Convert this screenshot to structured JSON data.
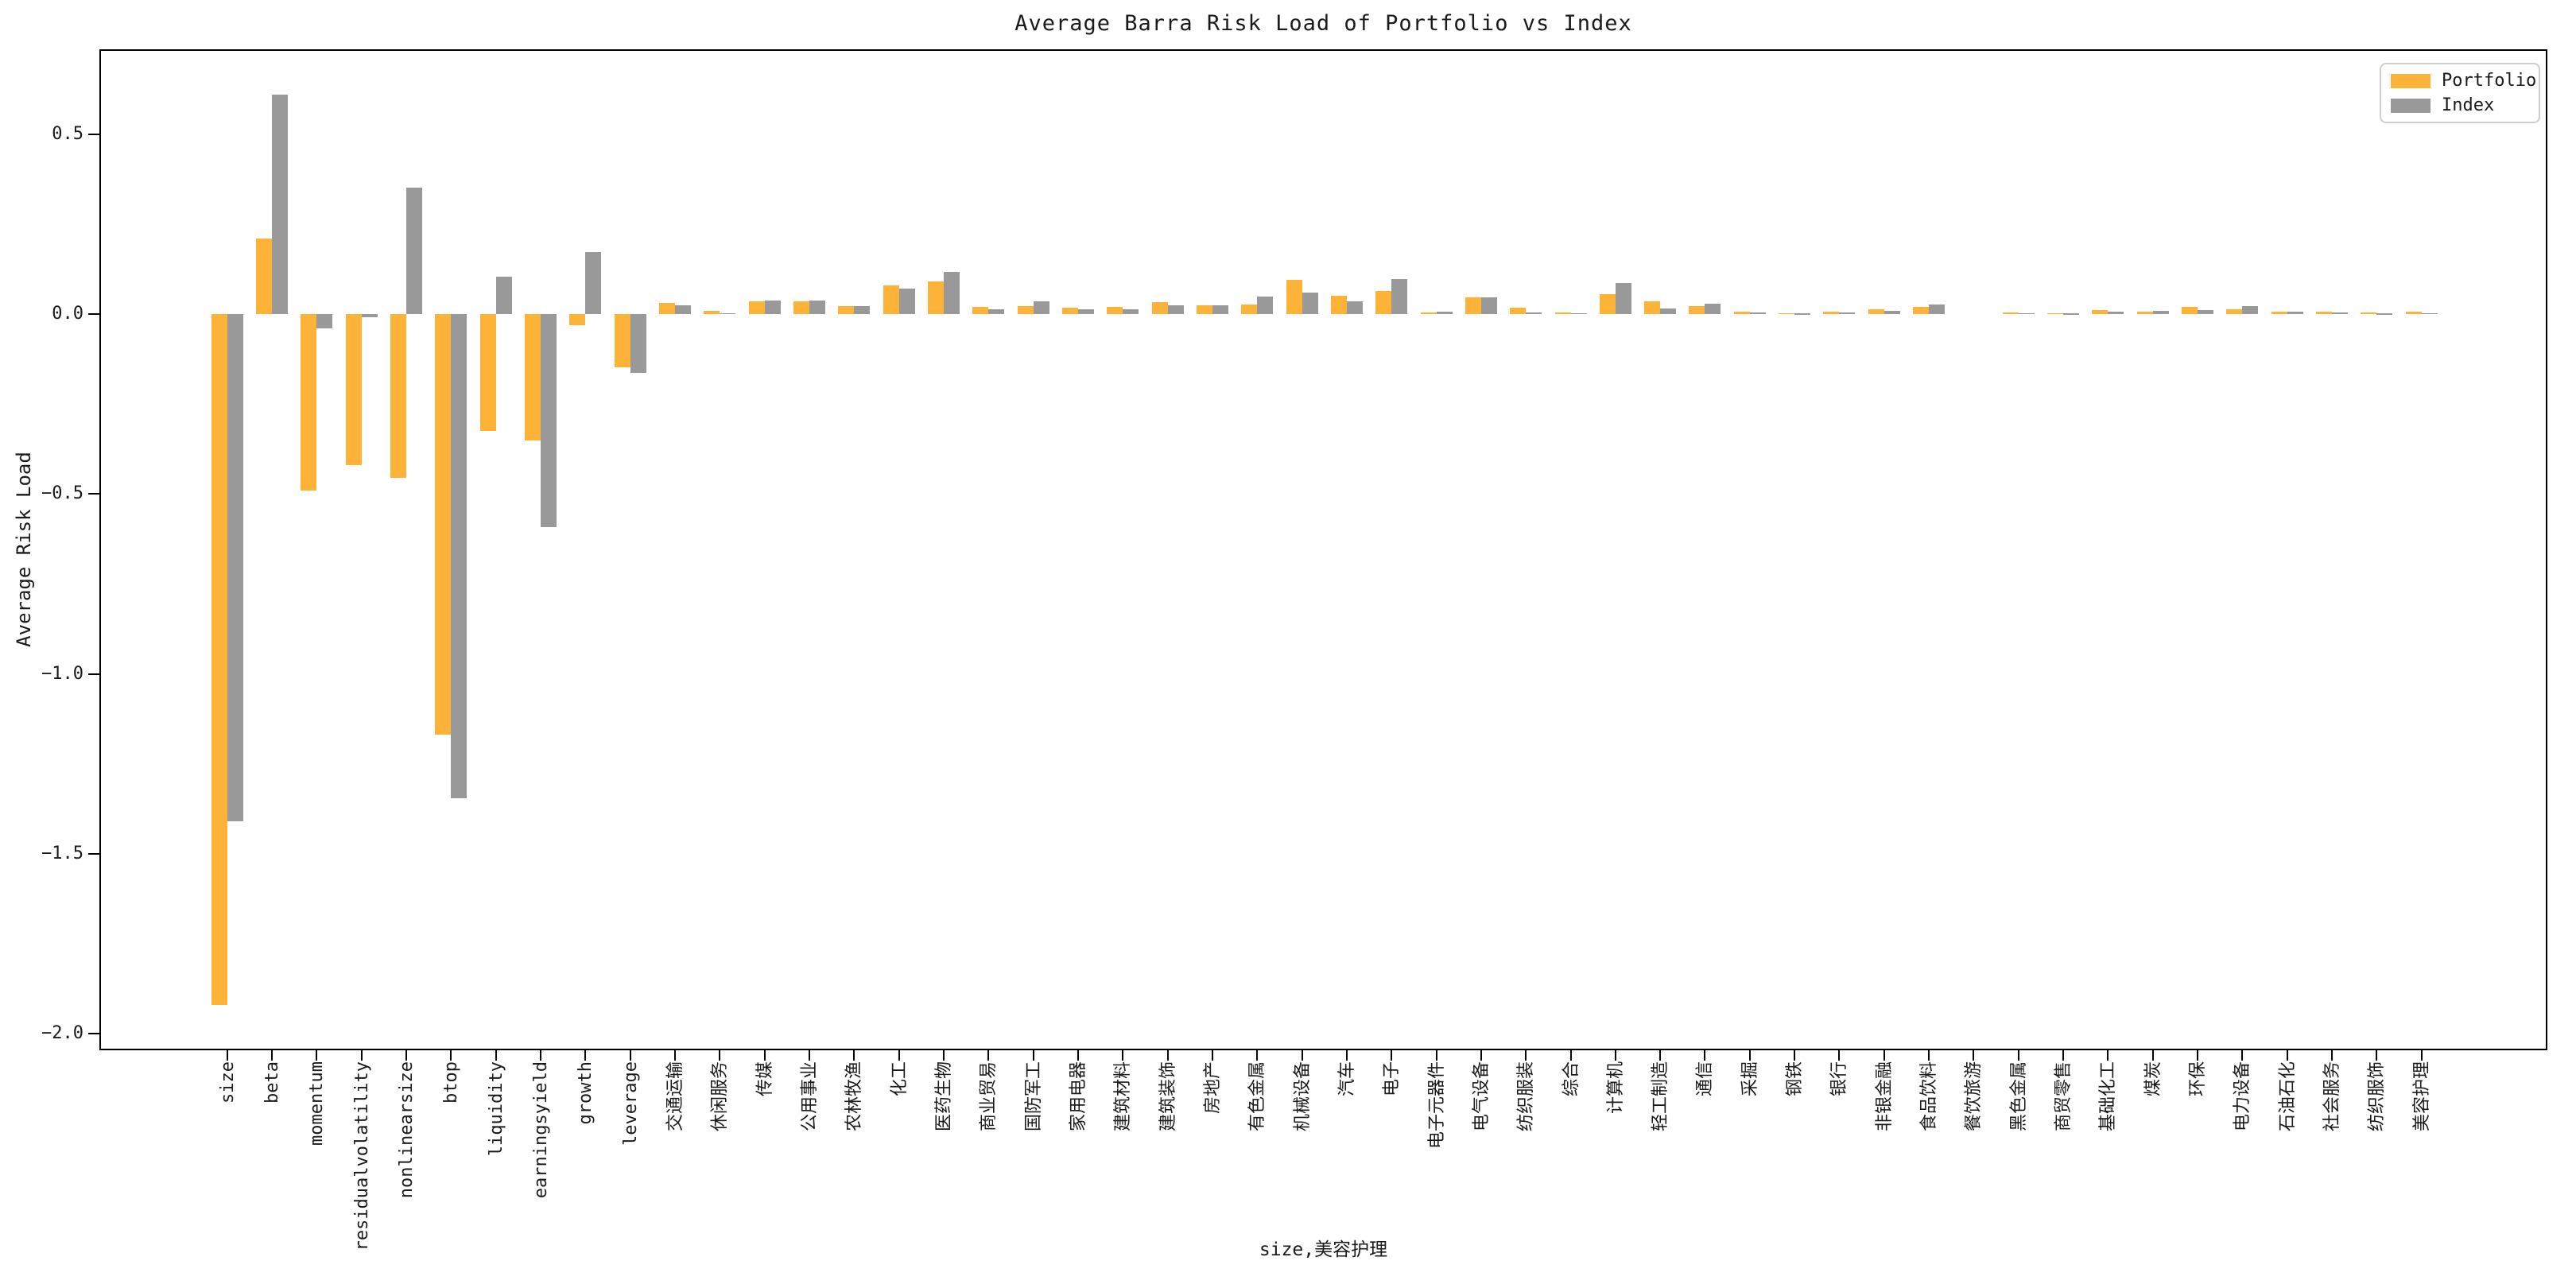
{
  "title": "Average Barra Risk Load of Portfolio vs Index",
  "ylabel": "Average Risk Load",
  "xlabel": "size,美容护理",
  "legend": {
    "entries": [
      {
        "label": "Portfolio",
        "color": "#FDB338"
      },
      {
        "label": "Index",
        "color": "#999999"
      }
    ]
  },
  "chart_data": {
    "type": "bar",
    "title": "Average Barra Risk Load of Portfolio vs Index",
    "xlabel": "size,美容护理",
    "ylabel": "Average Risk Load",
    "legend_position": "upper right",
    "grid": false,
    "ylim": [
      -2.047,
      0.737
    ],
    "yticks": [
      {
        "value": 0.5,
        "label": "0.5"
      },
      {
        "value": 0.0,
        "label": "0.0"
      },
      {
        "value": -0.5,
        "label": "−0.5"
      },
      {
        "value": -1.0,
        "label": "−1.0"
      },
      {
        "value": -1.5,
        "label": "−1.5"
      },
      {
        "value": -2.0,
        "label": "−2.0"
      }
    ],
    "categories": [
      "size",
      "beta",
      "momentum",
      "residualvolatility",
      "nonlinearsize",
      "btop",
      "liquidity",
      "earningsyield",
      "growth",
      "leverage",
      "交通运输",
      "休闲服务",
      "传媒",
      "公用事业",
      "农林牧渔",
      "化工",
      "医药生物",
      "商业贸易",
      "国防军工",
      "家用电器",
      "建筑材料",
      "建筑装饰",
      "房地产",
      "有色金属",
      "机械设备",
      "汽车",
      "电子",
      "电子元器件",
      "电气设备",
      "纺织服装",
      "综合",
      "计算机",
      "轻工制造",
      "通信",
      "采掘",
      "钢铁",
      "银行",
      "非银金融",
      "食品饮料",
      "餐饮旅游",
      "黑色金属",
      "商贸零售",
      "基础化工",
      "煤炭",
      "环保",
      "电力设备",
      "石油石化",
      "社会服务",
      "纺织服饰",
      "美容护理"
    ],
    "series": [
      {
        "name": "Portfolio",
        "color": "#FDB338",
        "values": [
          -1.92,
          0.21,
          -0.49,
          -0.42,
          -0.455,
          -1.17,
          -0.325,
          -0.35,
          -0.03,
          -0.148,
          0.032,
          0.01,
          0.035,
          0.035,
          0.022,
          0.081,
          0.092,
          0.02,
          0.022,
          0.018,
          0.021,
          0.033,
          0.024,
          0.027,
          0.096,
          0.051,
          0.064,
          0.005,
          0.047,
          0.018,
          0.004,
          0.057,
          0.035,
          0.022,
          0.007,
          0.003,
          0.007,
          0.014,
          0.02,
          0.0,
          0.004,
          0.003,
          0.011,
          0.007,
          0.02,
          0.013,
          0.008,
          0.008,
          0.005,
          0.008
        ]
      },
      {
        "name": "Index",
        "color": "#999999",
        "values": [
          -1.41,
          0.61,
          -0.039,
          -0.008,
          0.352,
          -1.345,
          0.104,
          -0.592,
          0.173,
          -0.164,
          0.024,
          0.003,
          0.039,
          0.038,
          0.022,
          0.072,
          0.117,
          0.015,
          0.037,
          0.013,
          0.015,
          0.024,
          0.024,
          0.049,
          0.061,
          0.037,
          0.097,
          0.008,
          0.047,
          0.005,
          0.003,
          0.086,
          0.017,
          0.029,
          0.006,
          0.002,
          0.006,
          0.01,
          0.028,
          0.0,
          0.003,
          0.002,
          0.008,
          0.009,
          0.011,
          0.022,
          0.007,
          0.004,
          0.002,
          0.003
        ]
      }
    ]
  }
}
